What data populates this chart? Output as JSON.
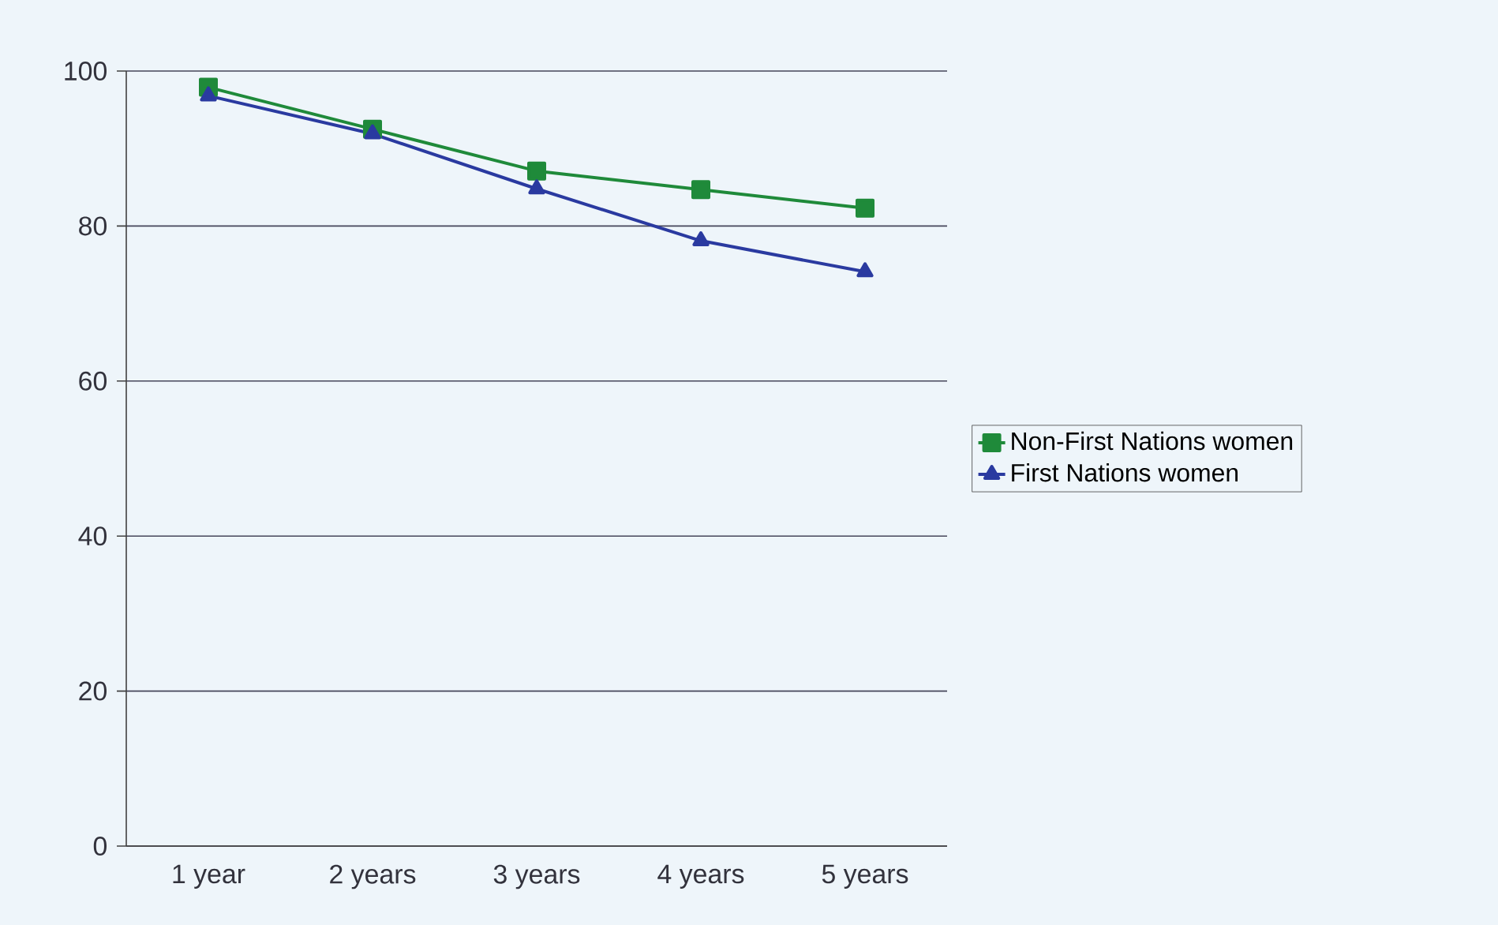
{
  "chart_data": {
    "type": "line",
    "categories": [
      "1 year",
      "2 years",
      "3 years",
      "4 years",
      "5 years"
    ],
    "series": [
      {
        "name": "Non-First Nations women",
        "color": "#1f8a3a",
        "marker": "square",
        "values": [
          97.9,
          92.5,
          87.1,
          84.7,
          82.3
        ]
      },
      {
        "name": "First Nations women",
        "color": "#2a3aa0",
        "marker": "triangle",
        "values": [
          96.8,
          91.9,
          84.8,
          78.1,
          74.1
        ]
      }
    ],
    "ylim": [
      0,
      100
    ],
    "yticks": [
      0,
      20,
      40,
      60,
      80,
      100
    ],
    "grid": "y",
    "legend": "right",
    "line_style": "solid"
  }
}
